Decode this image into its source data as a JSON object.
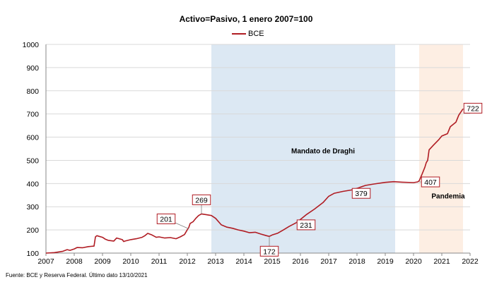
{
  "chart_data": {
    "type": "line",
    "title": "Activo=Pasivo, 1 enero 2007=100",
    "legend": {
      "position": "top-center",
      "entries": [
        "BCE"
      ]
    },
    "source": "Fuente: BCE y Reserva Federal. Último dato 13/10/2021",
    "xlabel": "",
    "ylabel": "",
    "xlim": [
      2007,
      2022
    ],
    "ylim": [
      100,
      1000
    ],
    "x_ticks": [
      2007,
      2008,
      2009,
      2010,
      2011,
      2012,
      2013,
      2014,
      2015,
      2016,
      2017,
      2018,
      2019,
      2020,
      2021,
      2022
    ],
    "y_ticks": [
      100,
      200,
      300,
      400,
      500,
      600,
      700,
      800,
      900,
      1000
    ],
    "grid": {
      "horizontal": true,
      "vertical": false
    },
    "colors": {
      "series": "#b01c23",
      "draghi": "#dce8f3",
      "pandemia": "#fdeee3",
      "grid": "#d9d9d9"
    },
    "regions": [
      {
        "label": "Mandato de Draghi",
        "x_start": 2012.85,
        "x_end": 2019.35,
        "color": "#dce8f3"
      },
      {
        "label": "Pandemia",
        "x_start": 2020.2,
        "x_end": 2021.75,
        "color": "#fdeee3"
      }
    ],
    "annotations": [
      {
        "text": "201",
        "x": 2012.05,
        "y": 205
      },
      {
        "text": "269",
        "x": 2012.5,
        "y": 269
      },
      {
        "text": "172",
        "x": 2014.9,
        "y": 172
      },
      {
        "text": "231",
        "x": 2015.85,
        "y": 231
      },
      {
        "text": "379",
        "x": 2018.0,
        "y": 379
      },
      {
        "text": "407",
        "x": 2020.2,
        "y": 407
      },
      {
        "text": "722",
        "x": 2021.75,
        "y": 722
      }
    ],
    "series": [
      {
        "name": "BCE",
        "x": [
          2007.0,
          2007.3,
          2007.6,
          2007.75,
          2007.85,
          2008.0,
          2008.1,
          2008.3,
          2008.5,
          2008.7,
          2008.75,
          2008.8,
          2009.0,
          2009.1,
          2009.2,
          2009.4,
          2009.5,
          2009.7,
          2009.75,
          2009.8,
          2010.0,
          2010.2,
          2010.4,
          2010.5,
          2010.6,
          2010.75,
          2010.9,
          2011.0,
          2011.2,
          2011.4,
          2011.6,
          2011.75,
          2011.9,
          2012.0,
          2012.05,
          2012.1,
          2012.2,
          2012.3,
          2012.4,
          2012.5,
          2012.7,
          2012.85,
          2013.0,
          2013.2,
          2013.4,
          2013.6,
          2013.8,
          2014.0,
          2014.2,
          2014.4,
          2014.6,
          2014.8,
          2014.9,
          2015.0,
          2015.2,
          2015.4,
          2015.6,
          2015.85,
          2016.0,
          2016.2,
          2016.5,
          2016.8,
          2017.0,
          2017.2,
          2017.5,
          2017.8,
          2018.0,
          2018.3,
          2018.6,
          2019.0,
          2019.3,
          2019.6,
          2020.0,
          2020.15,
          2020.2,
          2020.3,
          2020.4,
          2020.45,
          2020.5,
          2020.55,
          2020.7,
          2020.9,
          2021.0,
          2021.2,
          2021.3,
          2021.5,
          2021.6,
          2021.75
        ],
        "values": [
          100,
          102,
          108,
          115,
          112,
          118,
          124,
          123,
          128,
          130,
          170,
          175,
          168,
          160,
          155,
          152,
          165,
          158,
          150,
          152,
          158,
          162,
          168,
          175,
          185,
          178,
          168,
          170,
          165,
          167,
          162,
          170,
          180,
          201,
          210,
          228,
          235,
          250,
          262,
          269,
          265,
          262,
          250,
          222,
          212,
          207,
          200,
          195,
          188,
          190,
          182,
          175,
          172,
          178,
          186,
          200,
          215,
          231,
          245,
          265,
          290,
          318,
          345,
          358,
          366,
          372,
          379,
          392,
          398,
          405,
          408,
          406,
          404,
          407,
          412,
          440,
          470,
          490,
          500,
          545,
          565,
          590,
          605,
          615,
          645,
          665,
          695,
          722
        ]
      }
    ]
  }
}
